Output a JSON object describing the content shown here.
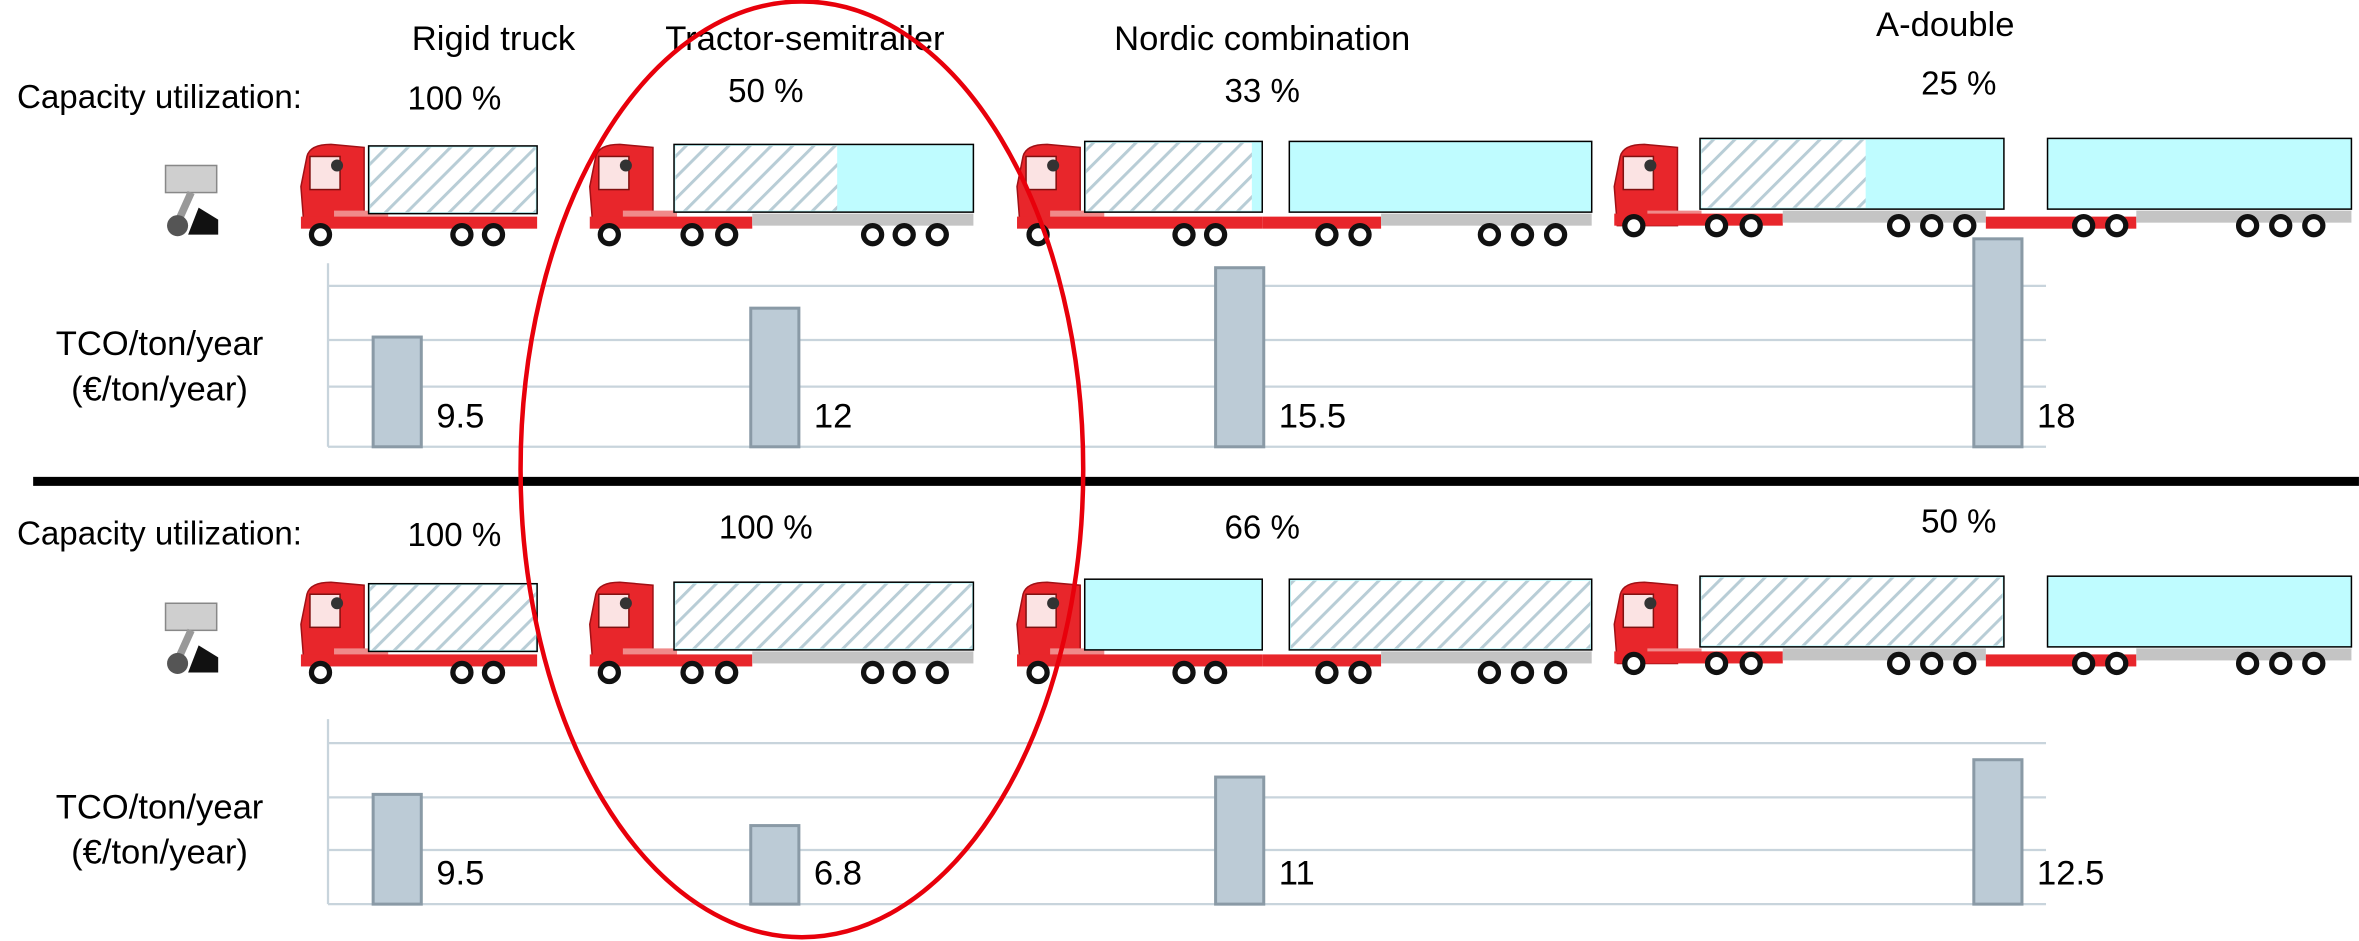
{
  "chart_data": [
    {
      "type": "bar",
      "categories": [
        "Rigid truck",
        "Tractor-semitrailer",
        "Nordic combination",
        "A-double"
      ],
      "capacity_label": "Capacity utilization:",
      "capacity_utilization": [
        "100 %",
        "50 %",
        "33 %",
        "25 %"
      ],
      "ylabel": [
        "TCO/ton/year",
        "(€/ton/year)"
      ],
      "values": [
        9.5,
        12,
        15.5,
        18
      ],
      "color": "#bccbd6",
      "ylim": [
        0,
        20
      ],
      "grid": true
    },
    {
      "type": "bar",
      "capacity_label": "Capacity utilization:",
      "capacity_utilization": [
        "100 %",
        "100 %",
        "66 %",
        "50 %"
      ],
      "ylabel": [
        "TCO/ton/year",
        "(€/ton/year)"
      ],
      "values": [
        9.5,
        6.8,
        11,
        12.5
      ],
      "color": "#bccbd6",
      "ylim": [
        0,
        20
      ],
      "grid": true
    }
  ]
}
